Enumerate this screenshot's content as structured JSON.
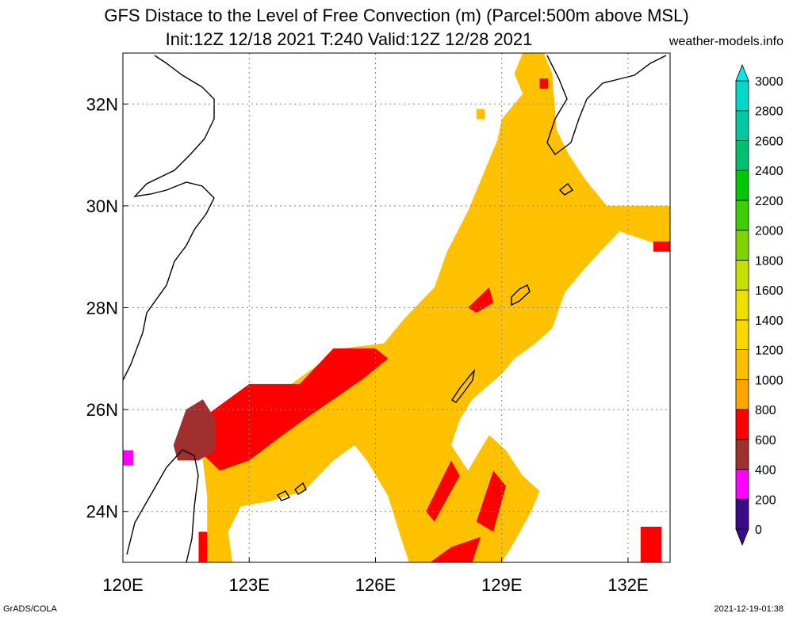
{
  "title_line1": "GFS Distace to the Level of Free Convection (m) (Parcel:500m above MSL)",
  "title_line2": "Init:12Z 12/18 2021 T:240 Valid:12Z 12/28 2021",
  "source": "weather-models.info",
  "footer_left": "GrADS/COLA",
  "footer_right": "2021-12-19-01:38",
  "map": {
    "lon_range": [
      120,
      133
    ],
    "lat_range": [
      23,
      33
    ],
    "lon_ticks": [
      {
        "value": 120,
        "label": "120E"
      },
      {
        "value": 123,
        "label": "123E"
      },
      {
        "value": 126,
        "label": "126E"
      },
      {
        "value": 129,
        "label": "129E"
      },
      {
        "value": 132,
        "label": "132E"
      }
    ],
    "lat_ticks": [
      {
        "value": 24,
        "label": "24N"
      },
      {
        "value": 26,
        "label": "26N"
      },
      {
        "value": 28,
        "label": "28N"
      },
      {
        "value": 30,
        "label": "30N"
      },
      {
        "value": 32,
        "label": "32N"
      }
    ],
    "grid": true
  },
  "colorbar": {
    "levels": [
      "0",
      "200",
      "400",
      "600",
      "800",
      "1000",
      "1200",
      "1400",
      "1600",
      "1800",
      "2000",
      "2200",
      "2400",
      "2600",
      "2800",
      "3000"
    ],
    "colors": [
      "#3a0a8a",
      "#ff00ff",
      "#a0302f",
      "#ff0000",
      "#ffa500",
      "#ffbf00",
      "#ffd700",
      "#f0e000",
      "#c8e000",
      "#7fd400",
      "#3ccf00",
      "#00c800",
      "#00c070",
      "#00c8a0",
      "#00d8c8",
      "#00e8e8"
    ]
  },
  "fields": {
    "regions": [
      {
        "name": "orange-main",
        "color": "#ffc100",
        "pts": [
          [
            122,
            23
          ],
          [
            122,
            24.3
          ],
          [
            121.9,
            25
          ],
          [
            122,
            25.7
          ],
          [
            122.5,
            26
          ],
          [
            123.5,
            26.2
          ],
          [
            124.5,
            26.8
          ],
          [
            125.2,
            27.2
          ],
          [
            126.2,
            27.3
          ],
          [
            126.7,
            27.8
          ],
          [
            127.4,
            28.4
          ],
          [
            127.7,
            29.1
          ],
          [
            128.2,
            29.9
          ],
          [
            128.5,
            30.5
          ],
          [
            128.9,
            31.3
          ],
          [
            129,
            31.7
          ],
          [
            129.5,
            32.2
          ],
          [
            129.3,
            32.6
          ],
          [
            129.5,
            33
          ],
          [
            130,
            33
          ],
          [
            130.2,
            32.6
          ],
          [
            130.3,
            31.5
          ],
          [
            130.6,
            31
          ],
          [
            131,
            30.5
          ],
          [
            131.5,
            30
          ],
          [
            133,
            30
          ],
          [
            133,
            29.2
          ],
          [
            132.5,
            29.3
          ],
          [
            131.8,
            29.5
          ],
          [
            131,
            28.8
          ],
          [
            130.5,
            28.3
          ],
          [
            130.2,
            27.6
          ],
          [
            129.8,
            27.3
          ],
          [
            129.3,
            27
          ],
          [
            129,
            26.7
          ],
          [
            128.3,
            26.2
          ],
          [
            128,
            25.8
          ],
          [
            127.8,
            25.3
          ],
          [
            128.2,
            24.8
          ],
          [
            128.7,
            25.5
          ],
          [
            129.1,
            25.2
          ],
          [
            129.5,
            24.7
          ],
          [
            129.9,
            24.4
          ],
          [
            129.7,
            24
          ],
          [
            129.3,
            23.4
          ],
          [
            129,
            23
          ],
          [
            126.8,
            23
          ],
          [
            126.6,
            23.5
          ],
          [
            126.3,
            24.3
          ],
          [
            125.8,
            25
          ],
          [
            125.5,
            25.3
          ],
          [
            125,
            25
          ],
          [
            124.3,
            24.4
          ],
          [
            123.5,
            24.2
          ],
          [
            122.8,
            24.1
          ],
          [
            122.5,
            23.6
          ],
          [
            122.6,
            23
          ],
          [
            122,
            23
          ]
        ]
      },
      {
        "name": "orange-northwest-cells",
        "color": "#ffc100",
        "pts": [
          [
            128.4,
            31.9
          ],
          [
            128.6,
            31.9
          ],
          [
            128.6,
            31.7
          ],
          [
            128.4,
            31.7
          ],
          [
            128.4,
            31.9
          ]
        ]
      },
      {
        "name": "red-band",
        "color": "#ff0000",
        "pts": [
          [
            121.8,
            25.2
          ],
          [
            122,
            25.9
          ],
          [
            123,
            26.5
          ],
          [
            124.2,
            26.5
          ],
          [
            125,
            27.2
          ],
          [
            126,
            27.2
          ],
          [
            126.3,
            27
          ],
          [
            125.7,
            26.6
          ],
          [
            125,
            26.2
          ],
          [
            124.3,
            25.8
          ],
          [
            123.8,
            25.5
          ],
          [
            123,
            25
          ],
          [
            122.3,
            24.8
          ],
          [
            121.8,
            25.2
          ]
        ]
      },
      {
        "name": "red-cell-north",
        "color": "#ff0000",
        "pts": [
          [
            129.9,
            32.5
          ],
          [
            130.1,
            32.5
          ],
          [
            130.1,
            32.3
          ],
          [
            129.9,
            32.3
          ],
          [
            129.9,
            32.5
          ]
        ]
      },
      {
        "name": "red-cell-east",
        "color": "#ff0000",
        "pts": [
          [
            132.6,
            29.3
          ],
          [
            133,
            29.3
          ],
          [
            133,
            29.1
          ],
          [
            132.6,
            29.1
          ],
          [
            132.6,
            29.3
          ]
        ]
      },
      {
        "name": "red-cell-amami",
        "color": "#ff0000",
        "pts": [
          [
            128.2,
            28
          ],
          [
            128.7,
            28.4
          ],
          [
            128.8,
            28.1
          ],
          [
            128.4,
            27.9
          ],
          [
            128.2,
            28
          ]
        ]
      },
      {
        "name": "red-cell-south1",
        "color": "#ff0000",
        "pts": [
          [
            127.2,
            24
          ],
          [
            127.8,
            25
          ],
          [
            128,
            24.7
          ],
          [
            127.4,
            23.8
          ],
          [
            127.2,
            24
          ]
        ]
      },
      {
        "name": "red-cell-south2",
        "color": "#ff0000",
        "pts": [
          [
            128.4,
            23.8
          ],
          [
            128.8,
            24.8
          ],
          [
            129.1,
            24.5
          ],
          [
            128.8,
            23.6
          ],
          [
            128.4,
            23.8
          ]
        ]
      },
      {
        "name": "red-cell-south3",
        "color": "#ff0000",
        "pts": [
          [
            127.3,
            23
          ],
          [
            127.8,
            23.3
          ],
          [
            128.5,
            23.5
          ],
          [
            128.3,
            23
          ],
          [
            127.3,
            23
          ]
        ]
      },
      {
        "name": "red-cell-sw",
        "color": "#ff0000",
        "pts": [
          [
            121.8,
            23
          ],
          [
            122,
            23
          ],
          [
            122,
            23.6
          ],
          [
            121.8,
            23.6
          ],
          [
            121.8,
            23
          ]
        ]
      },
      {
        "name": "red-cell-se",
        "color": "#ff0000",
        "pts": [
          [
            132.3,
            23
          ],
          [
            132.8,
            23
          ],
          [
            132.8,
            23.7
          ],
          [
            132.3,
            23.7
          ],
          [
            132.3,
            23
          ]
        ]
      },
      {
        "name": "brown-patch",
        "color": "#a0302f",
        "pts": [
          [
            121.2,
            25.3
          ],
          [
            121.5,
            26
          ],
          [
            121.9,
            26.2
          ],
          [
            122.2,
            25.8
          ],
          [
            122.2,
            25.2
          ],
          [
            121.8,
            25
          ],
          [
            121.3,
            25
          ],
          [
            121.2,
            25.3
          ]
        ]
      },
      {
        "name": "magenta-patch",
        "color": "#ff00ff",
        "pts": [
          [
            120,
            24.9
          ],
          [
            120.25,
            24.9
          ],
          [
            120.25,
            25.2
          ],
          [
            120,
            25.2
          ],
          [
            120,
            24.9
          ]
        ]
      }
    ]
  }
}
